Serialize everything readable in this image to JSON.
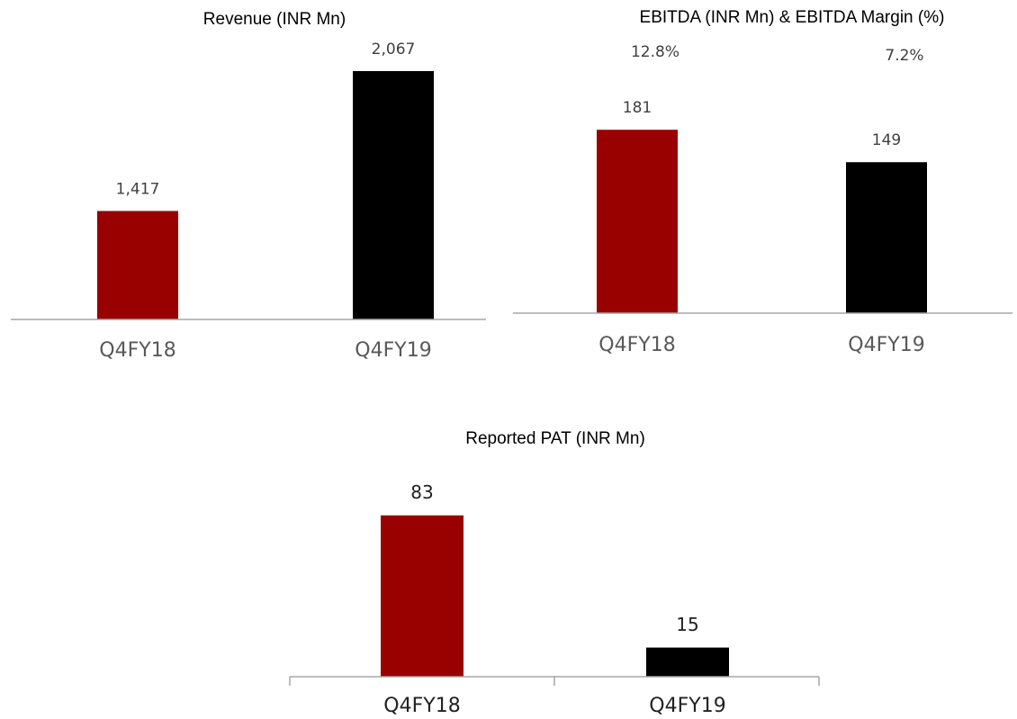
{
  "chart_data": [
    {
      "type": "bar",
      "title": "Revenue (INR Mn)",
      "categories": [
        "Q4FY18",
        "Q4FY19"
      ],
      "values": [
        1417,
        2067
      ],
      "value_labels": [
        "1,417",
        "2,067"
      ],
      "colors": [
        "#990000",
        "#000000"
      ],
      "ylim": [
        913,
        2230
      ]
    },
    {
      "type": "bar",
      "title": "EBITDA (INR Mn) & EBITDA Margin (%)",
      "categories": [
        "Q4FY18",
        "Q4FY19"
      ],
      "values": [
        181,
        149
      ],
      "colors": [
        "#990000",
        "#000000"
      ],
      "ylim": [
        0,
        270
      ],
      "margin_values": [
        12.8,
        7.2
      ],
      "margin_labels": [
        "12.8%",
        "7.2%"
      ]
    },
    {
      "type": "bar",
      "title": "Reported PAT (INR Mn)",
      "categories": [
        "Q4FY18",
        "Q4FY19"
      ],
      "values": [
        83,
        15
      ],
      "colors": [
        "#990000",
        "#000000"
      ],
      "ylim": [
        0,
        100
      ]
    }
  ]
}
